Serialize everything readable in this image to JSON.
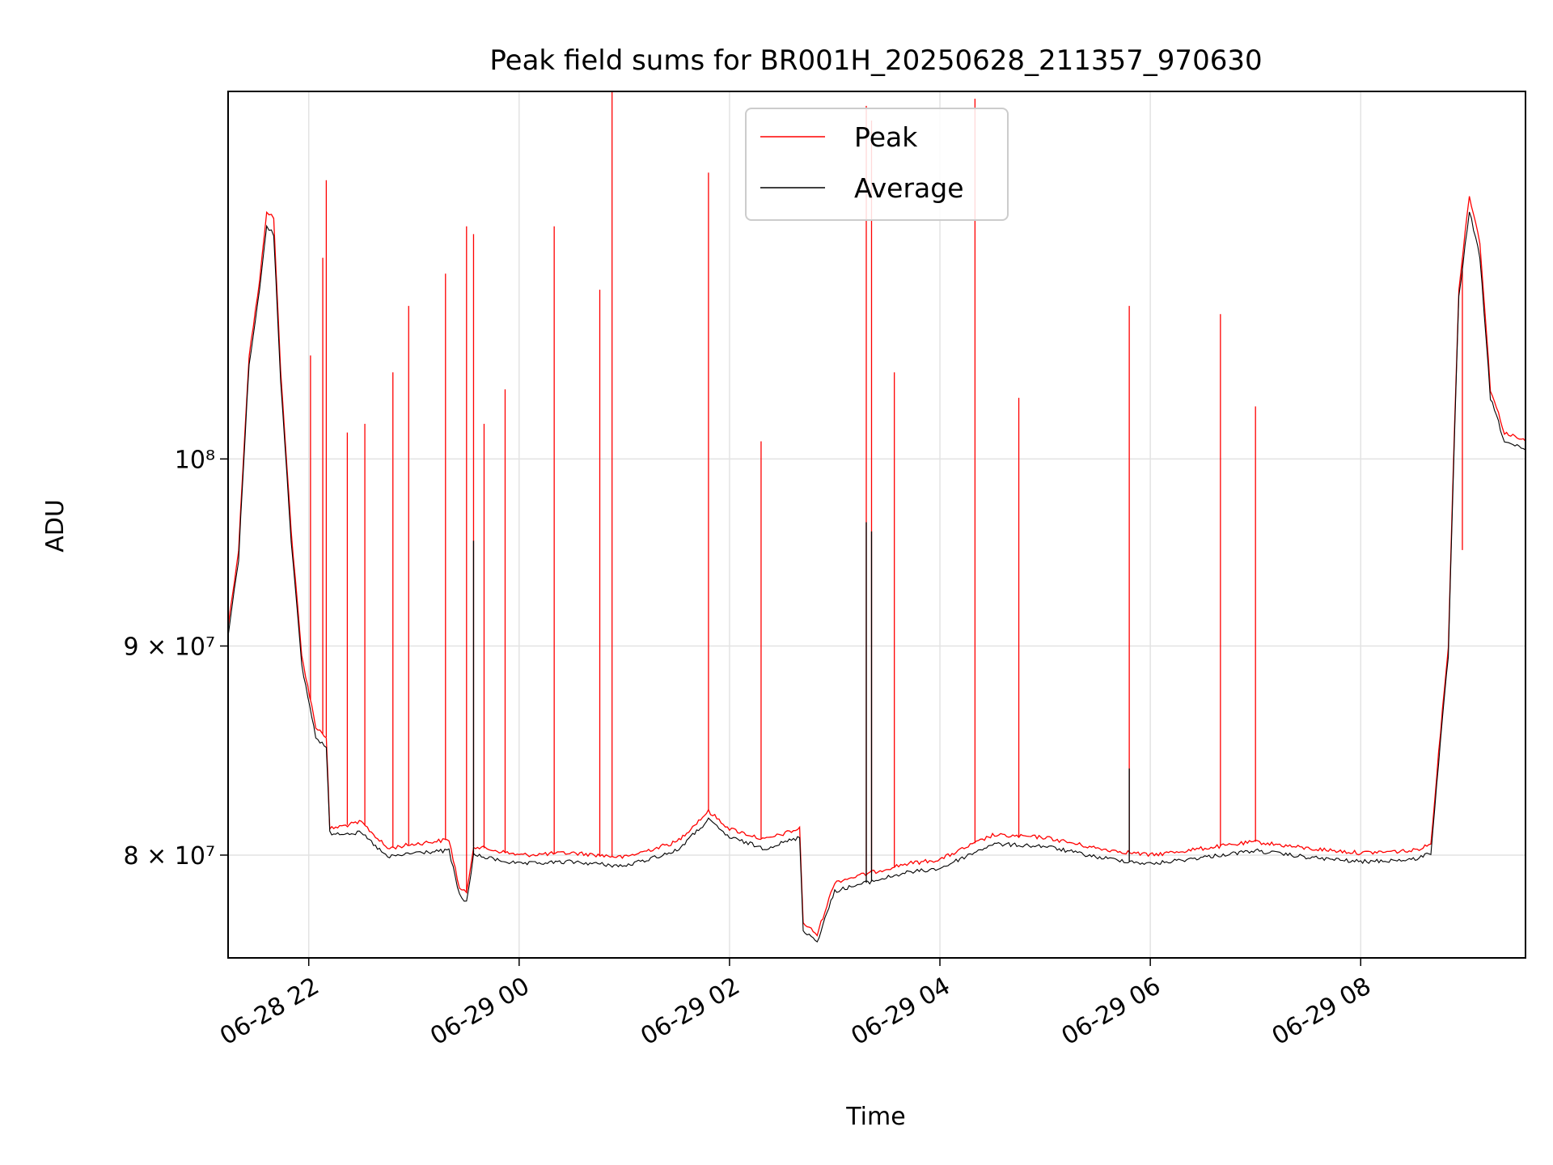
{
  "chart_data": {
    "type": "line",
    "title": "Peak field sums for BR001H_20250628_211357_970630",
    "xlabel": "Time",
    "ylabel": "ADU",
    "y_scale": "log",
    "xlim": [
      "2025-06-28 21:14",
      "2025-06-29 09:34"
    ],
    "ylim": [
      75500000,
      123000000
    ],
    "x_ticks": [
      "06-28 22",
      "06-29 00",
      "06-29 02",
      "06-29 04",
      "06-29 06",
      "06-29 08"
    ],
    "y_ticks": [
      "8 × 10⁷",
      "9 × 10⁷",
      "10⁸"
    ],
    "grid": true,
    "legend_position": "top-center",
    "colors": {
      "Peak": "#ff0000",
      "Average": "#000000"
    },
    "series": [
      {
        "name": "Peak",
        "points": [
          [
            "2025-06-28 21:14",
            91000000
          ],
          [
            "2025-06-28 21:20",
            95000000
          ],
          [
            "2025-06-28 21:26",
            106000000
          ],
          [
            "2025-06-28 21:32",
            110500000
          ],
          [
            "2025-06-28 21:36",
            115000000
          ],
          [
            "2025-06-28 21:40",
            114500000
          ],
          [
            "2025-06-28 21:44",
            105000000
          ],
          [
            "2025-06-28 21:50",
            96000000
          ],
          [
            "2025-06-28 21:56",
            89500000
          ],
          [
            "2025-06-28 22:04",
            86000000
          ],
          [
            "2025-06-28 22:10",
            85500000
          ],
          [
            "2025-06-28 22:12",
            81200000
          ],
          [
            "2025-06-28 22:30",
            81500000
          ],
          [
            "2025-06-28 22:45",
            80300000
          ],
          [
            "2025-06-28 23:00",
            80500000
          ],
          [
            "2025-06-28 23:20",
            80700000
          ],
          [
            "2025-06-28 23:26",
            78500000
          ],
          [
            "2025-06-28 23:30",
            78300000
          ],
          [
            "2025-06-28 23:34",
            80400000
          ],
          [
            "2025-06-29 00:00",
            80000000
          ],
          [
            "2025-06-29 00:30",
            80100000
          ],
          [
            "2025-06-29 01:00",
            79900000
          ],
          [
            "2025-06-29 01:30",
            80600000
          ],
          [
            "2025-06-29 01:48",
            82000000
          ],
          [
            "2025-06-29 02:00",
            81200000
          ],
          [
            "2025-06-29 02:20",
            80700000
          ],
          [
            "2025-06-29 02:40",
            81200000
          ],
          [
            "2025-06-29 02:42",
            77000000
          ],
          [
            "2025-06-29 02:50",
            76500000
          ],
          [
            "2025-06-29 03:00",
            78800000
          ],
          [
            "2025-06-29 03:20",
            79200000
          ],
          [
            "2025-06-29 03:40",
            79600000
          ],
          [
            "2025-06-29 04:00",
            79800000
          ],
          [
            "2025-06-29 04:30",
            80900000
          ],
          [
            "2025-06-29 05:00",
            80800000
          ],
          [
            "2025-06-29 05:30",
            80300000
          ],
          [
            "2025-06-29 06:00",
            80000000
          ],
          [
            "2025-06-29 06:30",
            80300000
          ],
          [
            "2025-06-29 07:00",
            80600000
          ],
          [
            "2025-06-29 07:30",
            80300000
          ],
          [
            "2025-06-29 08:00",
            80100000
          ],
          [
            "2025-06-29 08:30",
            80200000
          ],
          [
            "2025-06-29 08:40",
            80500000
          ],
          [
            "2025-06-29 08:50",
            90000000
          ],
          [
            "2025-06-29 08:56",
            110000000
          ],
          [
            "2025-06-29 09:02",
            116000000
          ],
          [
            "2025-06-29 09:08",
            113000000
          ],
          [
            "2025-06-29 09:14",
            104000000
          ],
          [
            "2025-06-29 09:22",
            101500000
          ],
          [
            "2025-06-29 09:34",
            101000000
          ]
        ],
        "spikes": [
          [
            "2025-06-28 22:01",
            106000000
          ],
          [
            "2025-06-28 22:08",
            112000000
          ],
          [
            "2025-06-28 22:10",
            117000000
          ],
          [
            "2025-06-28 22:22",
            101500000
          ],
          [
            "2025-06-28 22:32",
            102000000
          ],
          [
            "2025-06-28 22:48",
            105000000
          ],
          [
            "2025-06-28 22:57",
            109000000
          ],
          [
            "2025-06-28 23:18",
            111000000
          ],
          [
            "2025-06-28 23:30",
            114000000
          ],
          [
            "2025-06-28 23:34",
            113500000
          ],
          [
            "2025-06-28 23:40",
            102000000
          ],
          [
            "2025-06-28 23:52",
            104000000
          ],
          [
            "2025-06-29 00:20",
            114000000
          ],
          [
            "2025-06-29 00:46",
            110000000
          ],
          [
            "2025-06-29 00:53",
            123000000
          ],
          [
            "2025-06-29 01:48",
            117500000
          ],
          [
            "2025-06-29 02:18",
            101000000
          ],
          [
            "2025-06-29 03:18",
            122000000
          ],
          [
            "2025-06-29 03:21",
            121000000
          ],
          [
            "2025-06-29 03:34",
            105000000
          ],
          [
            "2025-06-29 04:20",
            122500000
          ],
          [
            "2025-06-29 04:45",
            103500000
          ],
          [
            "2025-06-29 05:48",
            109000000
          ],
          [
            "2025-06-29 06:40",
            108500000
          ],
          [
            "2025-06-29 07:00",
            103000000
          ],
          [
            "2025-06-29 08:58",
            95000000
          ]
        ]
      },
      {
        "name": "Average",
        "points": [
          [
            "2025-06-28 21:14",
            90500000
          ],
          [
            "2025-06-28 21:20",
            94500000
          ],
          [
            "2025-06-28 21:26",
            105500000
          ],
          [
            "2025-06-28 21:32",
            110000000
          ],
          [
            "2025-06-28 21:36",
            114000000
          ],
          [
            "2025-06-28 21:40",
            113500000
          ],
          [
            "2025-06-28 21:44",
            104500000
          ],
          [
            "2025-06-28 21:50",
            95500000
          ],
          [
            "2025-06-28 21:56",
            89000000
          ],
          [
            "2025-06-28 22:04",
            85500000
          ],
          [
            "2025-06-28 22:10",
            85000000
          ],
          [
            "2025-06-28 22:12",
            81000000
          ],
          [
            "2025-06-28 22:30",
            81000000
          ],
          [
            "2025-06-28 22:45",
            79900000
          ],
          [
            "2025-06-28 23:00",
            80100000
          ],
          [
            "2025-06-28 23:20",
            80200000
          ],
          [
            "2025-06-28 23:26",
            78200000
          ],
          [
            "2025-06-28 23:30",
            77900000
          ],
          [
            "2025-06-28 23:34",
            80000000
          ],
          [
            "2025-06-29 00:00",
            79600000
          ],
          [
            "2025-06-29 00:30",
            79700000
          ],
          [
            "2025-06-29 01:00",
            79500000
          ],
          [
            "2025-06-29 01:30",
            80200000
          ],
          [
            "2025-06-29 01:48",
            81600000
          ],
          [
            "2025-06-29 02:00",
            80800000
          ],
          [
            "2025-06-29 02:20",
            80300000
          ],
          [
            "2025-06-29 02:40",
            80800000
          ],
          [
            "2025-06-29 02:42",
            76700000
          ],
          [
            "2025-06-29 02:50",
            76200000
          ],
          [
            "2025-06-29 03:00",
            78400000
          ],
          [
            "2025-06-29 03:20",
            78800000
          ],
          [
            "2025-06-29 03:40",
            79200000
          ],
          [
            "2025-06-29 04:00",
            79400000
          ],
          [
            "2025-06-29 04:30",
            80500000
          ],
          [
            "2025-06-29 05:00",
            80400000
          ],
          [
            "2025-06-29 05:30",
            79900000
          ],
          [
            "2025-06-29 06:00",
            79600000
          ],
          [
            "2025-06-29 06:30",
            79900000
          ],
          [
            "2025-06-29 07:00",
            80200000
          ],
          [
            "2025-06-29 07:30",
            79900000
          ],
          [
            "2025-06-29 08:00",
            79700000
          ],
          [
            "2025-06-29 08:30",
            79800000
          ],
          [
            "2025-06-29 08:40",
            80100000
          ],
          [
            "2025-06-29 08:50",
            89500000
          ],
          [
            "2025-06-29 08:56",
            109500000
          ],
          [
            "2025-06-29 09:02",
            115000000
          ],
          [
            "2025-06-29 09:08",
            112000000
          ],
          [
            "2025-06-29 09:14",
            103500000
          ],
          [
            "2025-06-29 09:22",
            101000000
          ],
          [
            "2025-06-29 09:34",
            100500000
          ]
        ],
        "spikes": [
          [
            "2025-06-28 23:34",
            95500000
          ],
          [
            "2025-06-29 03:18",
            96500000
          ],
          [
            "2025-06-29 03:21",
            96000000
          ],
          [
            "2025-06-29 05:48",
            84000000
          ]
        ]
      }
    ]
  }
}
